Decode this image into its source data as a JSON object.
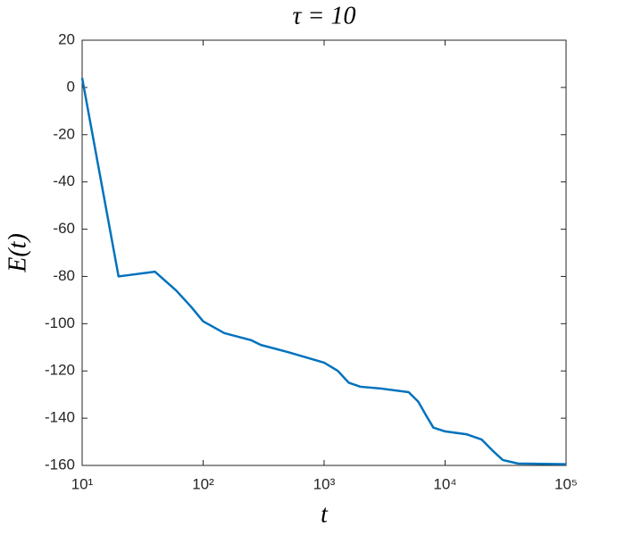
{
  "chart_data": {
    "type": "line",
    "title": "τ = 10",
    "xlabel": "t",
    "ylabel": "E(t)",
    "x": [
      10,
      20,
      40,
      60,
      80,
      100,
      150,
      250,
      300,
      500,
      1000,
      1300,
      1600,
      2000,
      3000,
      5000,
      6000,
      7000,
      8000,
      10000,
      15000,
      20000,
      25000,
      30000,
      40000,
      100000
    ],
    "series": [
      {
        "name": "E(t)",
        "color": "#0072bd",
        "values": [
          4,
          -80,
          -78,
          -86,
          -93,
          -99,
          -104,
          -107,
          -109,
          -112,
          -116.5,
          -120,
          -125,
          -126.7,
          -127.5,
          -129,
          -133,
          -139,
          -144,
          -145.6,
          -146.8,
          -149,
          -154,
          -157.7,
          -159.2,
          -159.5
        ]
      }
    ],
    "xscale": "log",
    "xlim": [
      10,
      100000
    ],
    "xticks": [
      {
        "value": 10,
        "label": "10¹"
      },
      {
        "value": 100,
        "label": "10²"
      },
      {
        "value": 1000,
        "label": "10³"
      },
      {
        "value": 10000,
        "label": "10⁴"
      },
      {
        "value": 100000,
        "label": "10⁵"
      }
    ],
    "ylim": [
      -160,
      20
    ],
    "yticks": [
      -160,
      -140,
      -120,
      -100,
      -80,
      -60,
      -40,
      -20,
      0,
      20
    ],
    "grid": false
  }
}
